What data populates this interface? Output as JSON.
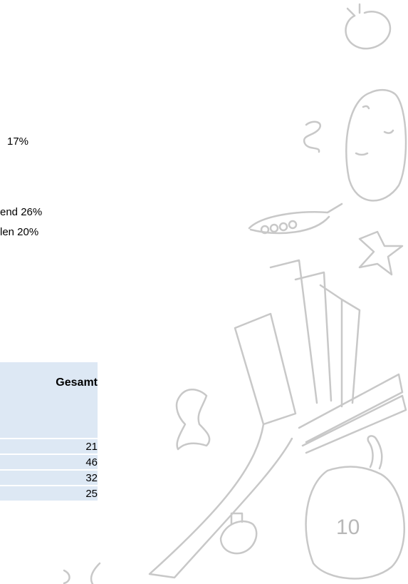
{
  "document": {
    "lines": [
      "17%",
      "end 26%",
      "len 20%"
    ],
    "table": {
      "header": "Gesamt",
      "rows": [
        21,
        46,
        32,
        25
      ]
    },
    "page_number": "10"
  }
}
